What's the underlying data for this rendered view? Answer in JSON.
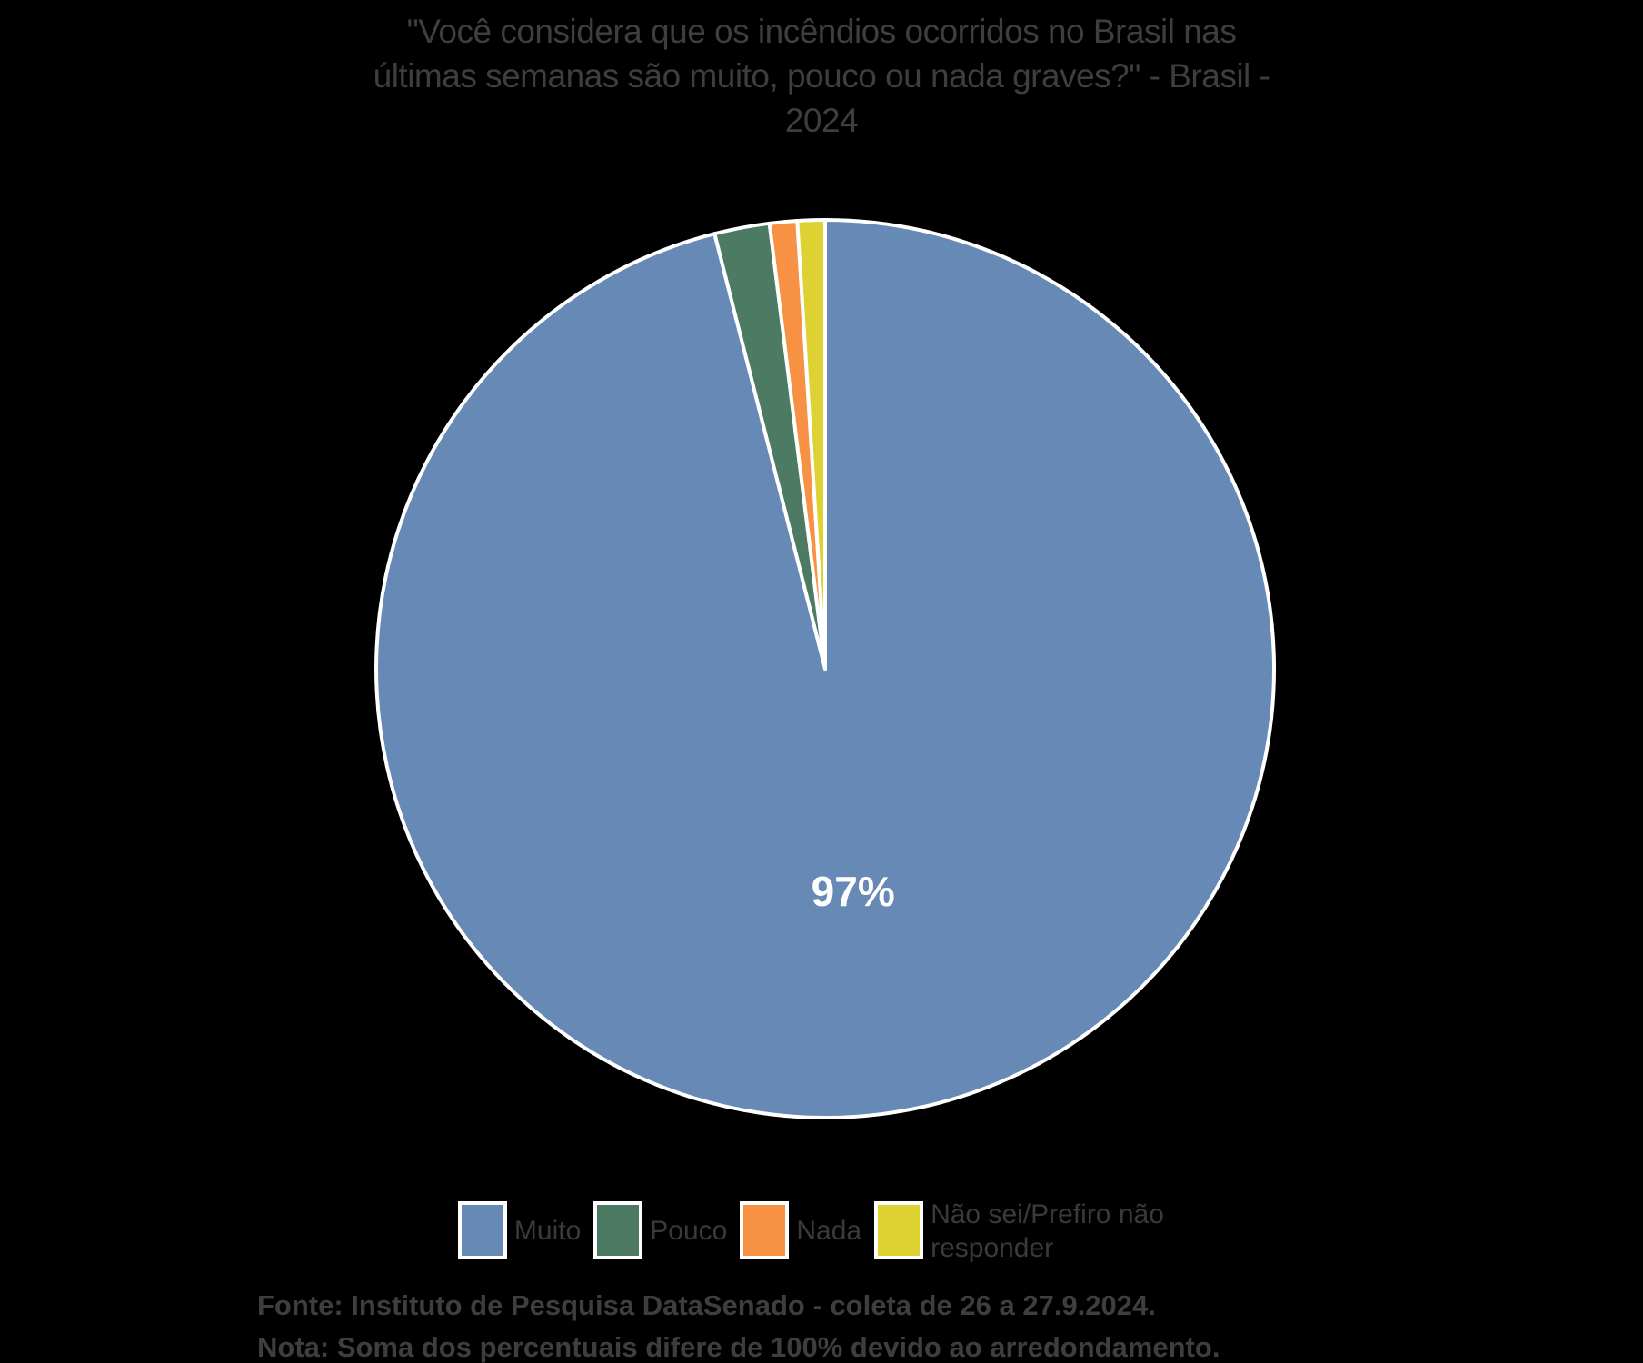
{
  "header": {
    "lines": [
      "\"Você considera que os incêndios ocorridos no Brasil nas",
      "últimas semanas são muito, pouco ou nada graves?\" - Brasil -",
      "2024"
    ]
  },
  "chart_data": {
    "type": "pie",
    "title": "\"Você considera que os incêndios ocorridos no Brasil nas últimas semanas são muito, pouco ou nada graves?\" - Brasil - 2024",
    "categories": [
      "Muito",
      "Pouco",
      "Nada",
      "Não sei/Prefiro não responder"
    ],
    "values": [
      97,
      2,
      1,
      1
    ],
    "unit": "%",
    "displayed_labels": [
      "97%",
      "",
      "",
      ""
    ],
    "colors": [
      "#6789b5",
      "#4d7a62",
      "#f79245",
      "#ddd232"
    ],
    "slice_border_color": "#ffffff",
    "start_angle_deg": 0,
    "direction": "clockwise",
    "legend_position": "bottom",
    "background_color": "#000000",
    "label_color": "#ffffff"
  },
  "footer": {
    "source": "Fonte: Instituto de Pesquisa DataSenado - coleta de 26 a 27.9.2024.",
    "note": "Nota: Soma dos percentuais difere de 100% devido ao arredondamento."
  }
}
